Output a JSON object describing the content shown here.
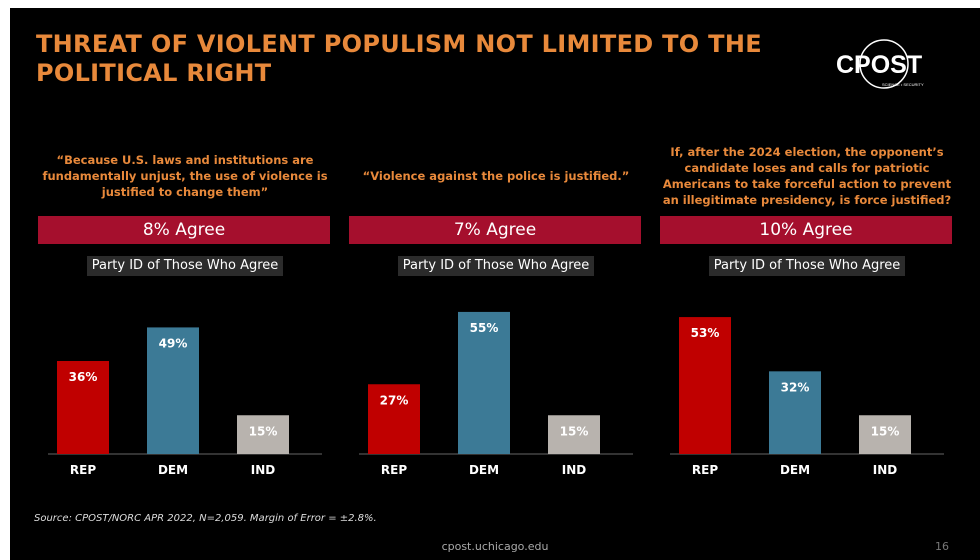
{
  "title": "THREAT OF VIOLENT POPULISM NOT LIMITED TO THE POLITICAL RIGHT",
  "logo": {
    "text": "CPOST",
    "subtext": "SCIENCE • SECURITY"
  },
  "colors": {
    "title": "#e8893b",
    "banner": "#a50f2d",
    "REP": "#c00000",
    "DEM": "#3c7a96",
    "IND": "#b8b3ae"
  },
  "panels": [
    {
      "question": "“Because U.S. laws and institutions are fundamentally unjust, the use of violence is justified to change them”",
      "agree": "8% Agree",
      "party_label": "Party ID of Those Who Agree"
    },
    {
      "question": "“Violence against the police is justified.”",
      "agree": "7% Agree",
      "party_label": "Party ID of Those Who Agree"
    },
    {
      "question": "If, after the 2024 election, the opponent’s candidate loses and calls for patriotic Americans to take forceful action to prevent an illegitimate presidency, is force justified?",
      "agree": "10% Agree",
      "party_label": "Party ID of Those Who Agree"
    }
  ],
  "chart_data": [
    {
      "type": "bar",
      "categories": [
        "REP",
        "DEM",
        "IND"
      ],
      "values": [
        36,
        49,
        15
      ],
      "data_labels": [
        "36%",
        "49%",
        "15%"
      ],
      "ylim": [
        0,
        60
      ]
    },
    {
      "type": "bar",
      "categories": [
        "REP",
        "DEM",
        "IND"
      ],
      "values": [
        27,
        55,
        15
      ],
      "data_labels": [
        "27%",
        "55%",
        "15%"
      ],
      "ylim": [
        0,
        60
      ]
    },
    {
      "type": "bar",
      "categories": [
        "REP",
        "DEM",
        "IND"
      ],
      "values": [
        53,
        32,
        15
      ],
      "data_labels": [
        "53%",
        "32%",
        "15%"
      ],
      "ylim": [
        0,
        60
      ]
    }
  ],
  "source": "Source: CPOST/NORC APR 2022, N=2,059. Margin of Error = ±2.8%.",
  "footer": "cpost.uchicago.edu",
  "page_number": "16"
}
